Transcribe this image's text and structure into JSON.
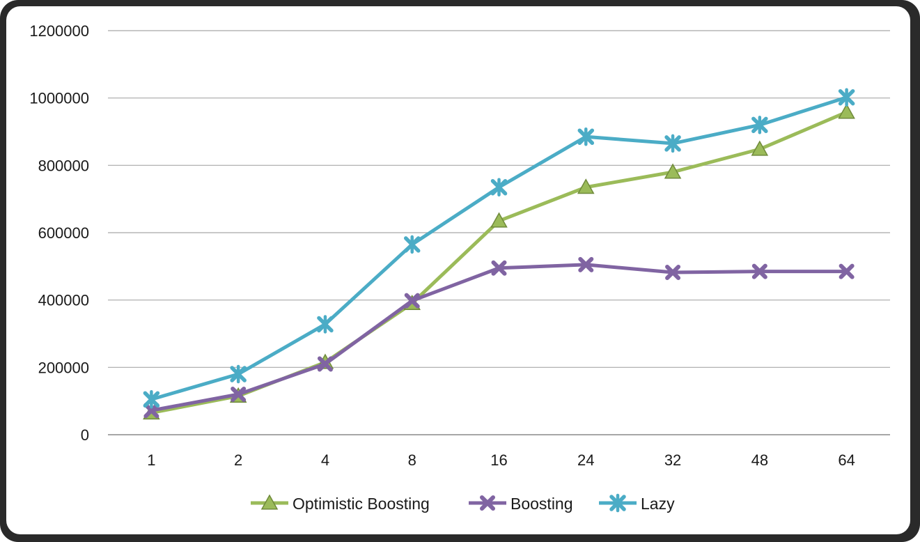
{
  "chart_data": {
    "type": "line",
    "title": "",
    "xlabel": "",
    "ylabel": "",
    "categories": [
      "1",
      "2",
      "4",
      "8",
      "16",
      "24",
      "32",
      "48",
      "64"
    ],
    "ylim": [
      0,
      1200000
    ],
    "yticks": [
      "0",
      "200000",
      "400000",
      "600000",
      "800000",
      "1000000",
      "1200000"
    ],
    "grid": true,
    "legend_position": "bottom",
    "series": [
      {
        "name": "Optimistic Boosting",
        "color": "#9BBB59",
        "marker": "triangle",
        "values": [
          65000,
          115000,
          215000,
          390000,
          635000,
          735000,
          780000,
          848000,
          958000
        ]
      },
      {
        "name": "Boosting",
        "color": "#8064A2",
        "marker": "x",
        "values": [
          72000,
          120000,
          210000,
          398000,
          495000,
          505000,
          482000,
          485000,
          485000
        ]
      },
      {
        "name": "Lazy",
        "color": "#4BACC6",
        "marker": "star",
        "values": [
          105000,
          180000,
          328000,
          565000,
          735000,
          885000,
          865000,
          920000,
          1002000
        ]
      }
    ]
  }
}
